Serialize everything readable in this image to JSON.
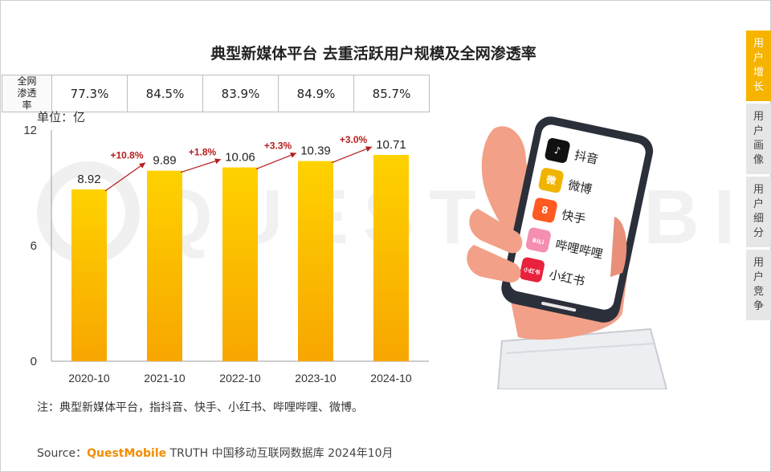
{
  "title": "典型新媒体平台 去重活跃用户规模及全网渗透率",
  "penetration_table": {
    "header": "全网渗透率",
    "values": [
      "77.3%",
      "84.5%",
      "83.9%",
      "84.9%",
      "85.7%"
    ]
  },
  "unit_label": "单位：亿",
  "chart_data": {
    "type": "bar",
    "categories": [
      "2020-10",
      "2021-10",
      "2022-10",
      "2023-10",
      "2024-10"
    ],
    "values": [
      8.92,
      9.89,
      10.06,
      10.39,
      10.71
    ],
    "value_labels": [
      "8.92",
      "9.89",
      "10.06",
      "10.39",
      "10.71"
    ],
    "growth_labels": [
      "+10.8%",
      "+1.8%",
      "+3.3%",
      "+3.0%"
    ],
    "yticks": [
      "12",
      "6",
      "0"
    ],
    "ylim": [
      0,
      12
    ],
    "bar_color": "#fcbf00",
    "growth_color": "#b71c1c"
  },
  "note": "注：典型新媒体平台，指抖音、快手、小红书、哔哩哔哩、微博。",
  "source": {
    "prefix": "Source：",
    "brand": "QuestMobile",
    "suffix": " TRUTH 中国移动互联网数据库 2024年10月"
  },
  "watermark": "QUESTMOBILE",
  "apps": [
    {
      "name": "抖音",
      "icon": "douyin-icon",
      "badge": "♪",
      "color": "#111111"
    },
    {
      "name": "微博",
      "icon": "weibo-icon",
      "badge": "微",
      "color": "#f0b400"
    },
    {
      "name": "快手",
      "icon": "kuaishou-icon",
      "badge": "8",
      "color": "#ff5a1f"
    },
    {
      "name": "哔哩哔哩",
      "icon": "bilibili-icon",
      "badge": "BiLi",
      "color": "#f48fb1"
    },
    {
      "name": "小红书",
      "icon": "xiaohongshu-icon",
      "badge": "小红书",
      "color": "#e8213c"
    }
  ],
  "tabs": [
    {
      "label": "用户增长",
      "active": true
    },
    {
      "label": "用户画像",
      "active": false
    },
    {
      "label": "用户细分",
      "active": false
    },
    {
      "label": "用户竞争",
      "active": false
    }
  ]
}
